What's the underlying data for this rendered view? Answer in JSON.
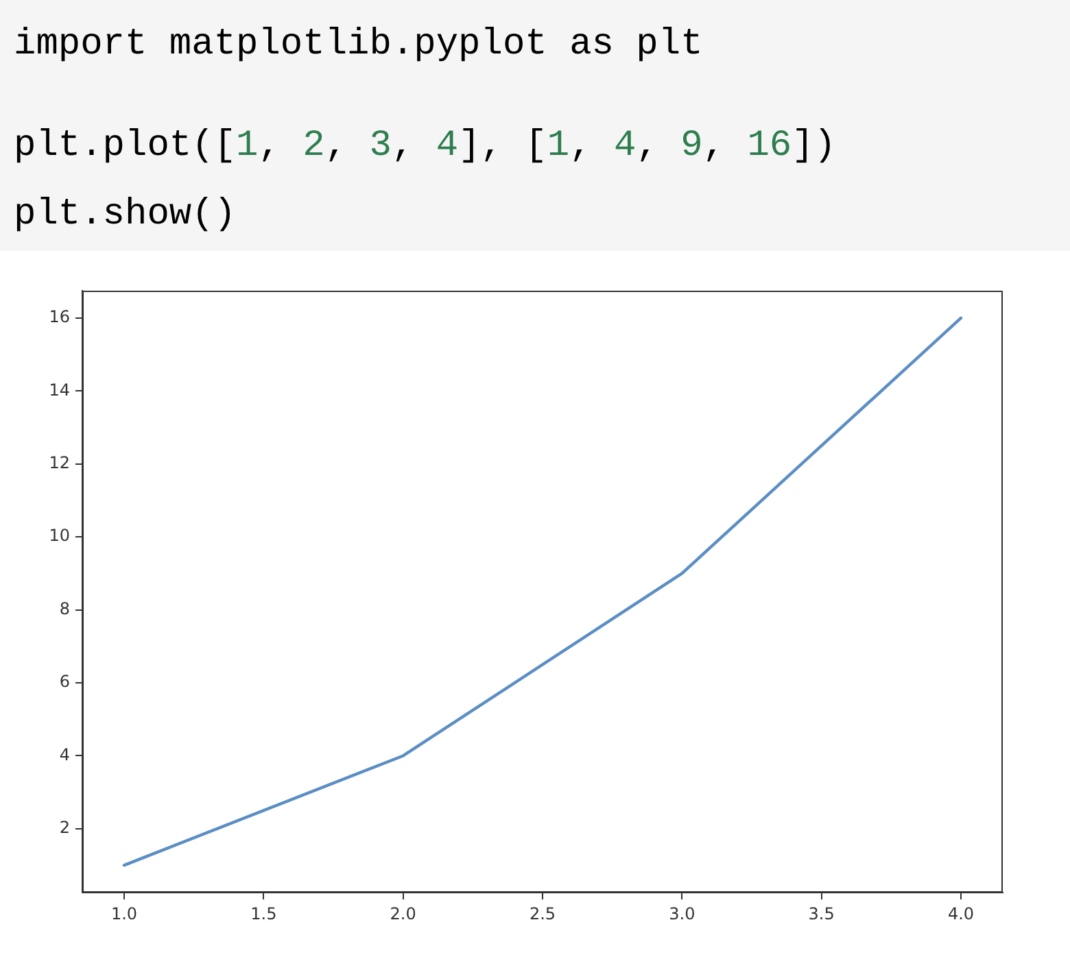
{
  "chart_data": {
    "type": "line",
    "annotations": [
      "import matplotlib.pyplot as plt",
      "plt.plot([1, 2, 3, 4], [1, 4, 9, 16])",
      "plt.show()"
    ],
    "x": [
      1,
      2,
      3,
      4
    ],
    "series": [
      {
        "color": "#5b8ec5",
        "values": [
          1,
          4,
          9,
          16
        ]
      }
    ],
    "xlim": [
      0.85,
      4.15
    ],
    "xticks": [
      {
        "value": 1,
        "label": "1.0"
      },
      {
        "value": 1.5,
        "label": "1.5"
      },
      {
        "value": 2,
        "label": "2.0"
      },
      {
        "value": 2.5,
        "label": "2.5"
      },
      {
        "value": 3,
        "label": "3.0"
      },
      {
        "value": 3.5,
        "label": "3.5"
      },
      {
        "value": 4,
        "label": "4.0"
      }
    ],
    "ylim": [
      0.25,
      16.75
    ],
    "yticks": [
      2,
      4,
      6,
      8,
      10,
      12,
      14,
      16
    ],
    "grid": false,
    "legend": false,
    "marker": "none",
    "line_style": "solid"
  }
}
